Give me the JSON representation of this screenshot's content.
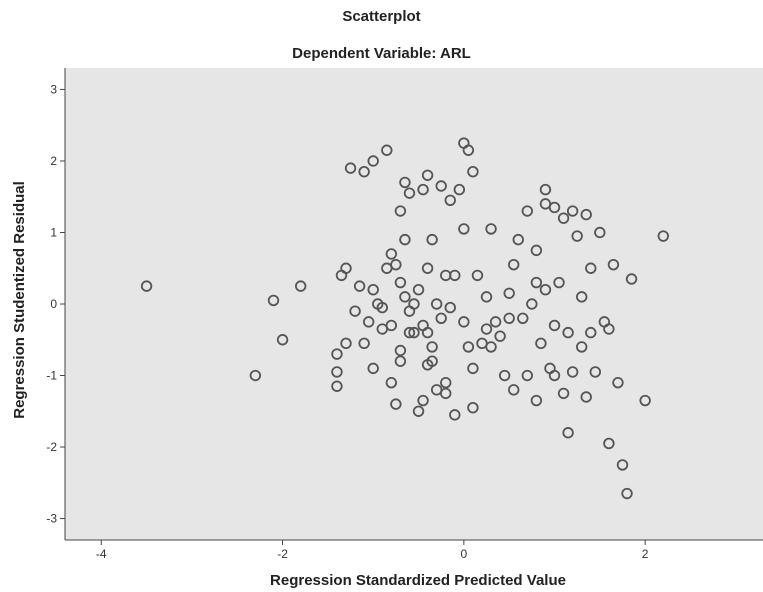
{
  "chart_data": {
    "type": "scatter",
    "title": "Scatterplot",
    "subtitle": "Dependent Variable: ARL",
    "xlabel": "Regression Standardized Predicted Value",
    "ylabel": "Regression Studentized Residual",
    "xlim": [
      -4.4,
      3.3
    ],
    "ylim": [
      -3.3,
      3.3
    ],
    "xticks": [
      -4,
      -2,
      0,
      2
    ],
    "yticks": [
      -3,
      -2,
      -1,
      0,
      1,
      2,
      3
    ],
    "xtick_labels": [
      "-4",
      "-2",
      "0",
      "2"
    ],
    "ytick_labels": [
      "-3",
      "-2",
      "-1",
      "0",
      "1",
      "2",
      "3"
    ],
    "grid": false,
    "marker": "circle",
    "colors": {
      "plot_bg": "#e6e6e6",
      "marker_stroke": "#555555",
      "axis": "#444444"
    },
    "series": [
      {
        "x": [
          -3.5,
          -2.3,
          -2.1,
          -2.0,
          -1.8,
          -1.4,
          -1.4,
          -1.4,
          -1.35,
          -1.3,
          -1.25,
          -1.2,
          -1.15,
          -1.1,
          -1.1,
          -1.05,
          -1.0,
          -1.0,
          -1.0,
          -0.95,
          -0.9,
          -0.85,
          -0.85,
          -0.8,
          -0.8,
          -0.8,
          -0.75,
          -0.7,
          -0.7,
          -0.7,
          -0.65,
          -0.65,
          -0.6,
          -0.6,
          -0.55,
          -0.5,
          -0.5,
          -0.45,
          -0.45,
          -0.4,
          -0.4,
          -0.4,
          -0.35,
          -0.35,
          -0.3,
          -0.3,
          -0.25,
          -0.25,
          -0.2,
          -0.2,
          -0.15,
          -0.15,
          -0.1,
          -0.1,
          -0.05,
          0.0,
          0.0,
          0.0,
          0.05,
          0.05,
          0.1,
          0.1,
          0.15,
          0.2,
          0.25,
          0.3,
          0.35,
          0.4,
          0.45,
          0.5,
          0.55,
          0.6,
          0.65,
          0.7,
          0.7,
          0.75,
          0.8,
          0.8,
          0.85,
          0.9,
          0.9,
          0.95,
          1.0,
          1.0,
          1.0,
          1.05,
          1.1,
          1.1,
          1.15,
          1.2,
          1.2,
          1.25,
          1.3,
          1.3,
          1.35,
          1.4,
          1.4,
          1.45,
          1.5,
          1.55,
          1.6,
          1.6,
          1.65,
          1.7,
          1.75,
          1.8,
          1.85,
          2.0,
          2.2,
          -0.4,
          -0.45,
          -0.6,
          -0.2,
          0.25,
          0.3,
          0.55,
          0.5,
          0.8,
          1.35,
          -0.55,
          -0.75,
          -0.9,
          -1.3,
          -0.35,
          -0.65,
          -0.7,
          0.1,
          1.15,
          0.9
        ],
        "y": [
          0.25,
          -1.0,
          0.05,
          -0.5,
          0.25,
          -0.7,
          -0.95,
          -1.15,
          0.4,
          0.5,
          1.9,
          -0.1,
          0.25,
          -0.55,
          1.85,
          -0.25,
          0.2,
          -0.9,
          2.0,
          0.0,
          -0.35,
          2.15,
          0.5,
          -1.1,
          0.7,
          -0.3,
          -1.4,
          0.3,
          1.3,
          -0.8,
          0.1,
          1.7,
          -0.4,
          1.55,
          0.0,
          0.2,
          -1.5,
          1.6,
          -1.35,
          0.5,
          -0.4,
          1.8,
          0.9,
          -0.6,
          -1.2,
          0.0,
          1.65,
          -0.2,
          -1.25,
          0.4,
          -0.05,
          1.45,
          0.4,
          -1.55,
          1.6,
          2.25,
          1.05,
          -0.25,
          2.15,
          -0.6,
          -1.45,
          -0.9,
          0.4,
          -0.55,
          0.1,
          1.05,
          -0.25,
          -0.45,
          -1.0,
          0.15,
          -1.2,
          0.9,
          -0.2,
          -1.0,
          1.3,
          0.0,
          -1.35,
          0.75,
          -0.55,
          1.6,
          0.2,
          -0.9,
          1.35,
          -1.0,
          -0.3,
          0.3,
          1.2,
          -1.25,
          -0.4,
          1.3,
          -0.95,
          0.95,
          -0.6,
          0.1,
          -1.3,
          -0.4,
          0.5,
          -0.95,
          1.0,
          -0.25,
          -1.95,
          -0.35,
          0.55,
          -1.1,
          -2.25,
          -2.65,
          0.35,
          -1.35,
          0.95,
          -0.85,
          -0.3,
          -0.1,
          -1.1,
          -0.35,
          -0.6,
          0.55,
          -0.2,
          0.3,
          1.25,
          -0.4,
          0.55,
          -0.05,
          -0.55,
          -0.8,
          0.9,
          -0.65,
          1.85,
          -1.8,
          1.4
        ]
      }
    ]
  }
}
